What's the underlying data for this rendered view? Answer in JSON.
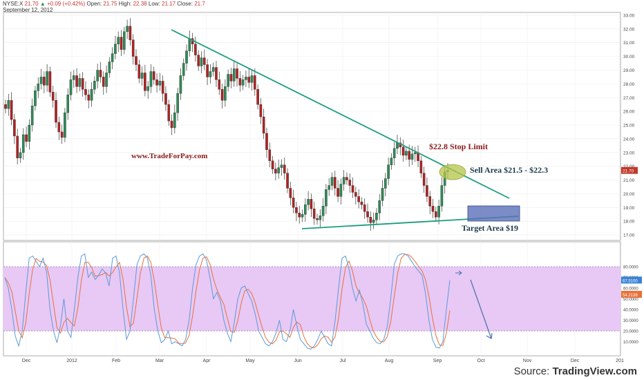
{
  "header": {
    "symbol": "NYSE:X",
    "last": "21.70",
    "change": "+0.09 (+0.42%)",
    "open_label": "Open:",
    "open": "21.75",
    "high_label": "High:",
    "high": "22.38",
    "low_label": "Low:",
    "low": "21.17",
    "close_label": "Close:",
    "close": "21.7",
    "date": "September 12, 2012"
  },
  "source": {
    "prefix": "Source:",
    "name": "TradingView.com"
  },
  "colors": {
    "up": "#2e8b57",
    "down": "#b22222",
    "trend": "#1a9e7a",
    "stoch_bg": "#e8c8f5",
    "k": "#5b9bd5",
    "d": "#e8703a",
    "annot": "#8b1a1a",
    "ellipse": "#b5c44a",
    "target_box": "#5a6fb8"
  },
  "chart_data": [
    {
      "type": "candlestick",
      "x_ticks": [
        "Dec",
        "2012",
        "Feb",
        "Mar",
        "Apr",
        "May",
        "Jun",
        "Jul",
        "Aug",
        "Sep",
        "Oct",
        "Nov",
        "Dec",
        "201"
      ],
      "y_ticks": [
        "17.00",
        "18.00",
        "19.00",
        "20.00",
        "21.00",
        "22.00",
        "23.00",
        "24.00",
        "25.00",
        "26.00",
        "27.00",
        "28.00",
        "29.00",
        "30.00",
        "31.00",
        "32.00",
        "33.00"
      ],
      "ylim": [
        16.6,
        33.2
      ],
      "last_price_tag": "21.70",
      "closes": [
        26.2,
        26.8,
        25.4,
        24.2,
        22.6,
        23.0,
        24.3,
        23.8,
        25.0,
        26.4,
        27.5,
        28.0,
        28.5,
        27.9,
        28.9,
        27.4,
        26.8,
        25.2,
        24.5,
        24.1,
        25.9,
        27.2,
        28.3,
        28.6,
        27.8,
        28.4,
        27.6,
        27.2,
        26.8,
        27.6,
        28.2,
        29.0,
        28.5,
        27.8,
        28.8,
        29.6,
        30.2,
        30.9,
        31.4,
        30.5,
        31.8,
        32.2,
        31.2,
        30.0,
        29.4,
        28.4,
        28.8,
        27.5,
        27.8,
        28.9,
        28.3,
        27.9,
        28.2,
        27.3,
        26.5,
        25.3,
        24.8,
        25.9,
        27.3,
        28.6,
        29.5,
        30.4,
        31.3,
        30.9,
        30.1,
        29.3,
        29.9,
        29.4,
        28.5,
        28.9,
        29.2,
        28.3,
        27.6,
        26.8,
        27.8,
        28.7,
        28.2,
        29.1,
        28.4,
        27.9,
        28.3,
        28.5,
        28.1,
        28.6,
        27.6,
        26.5,
        25.6,
        24.4,
        23.2,
        22.4,
        21.8,
        21.5,
        21.9,
        22.1,
        21.5,
        20.4,
        19.7,
        19.0,
        18.6,
        18.3,
        18.5,
        19.2,
        19.6,
        18.9,
        18.2,
        18.1,
        18.4,
        19.1,
        20.3,
        20.6,
        21.2,
        20.4,
        19.8,
        20.7,
        21.2,
        21.0,
        20.6,
        20.1,
        19.8,
        19.4,
        19.2,
        18.7,
        18.3,
        17.9,
        18.1,
        18.6,
        19.5,
        20.4,
        21.1,
        22.1,
        22.6,
        23.3,
        23.7,
        23.4,
        22.8,
        23.1,
        22.5,
        22.9,
        23.0,
        22.4,
        21.5,
        20.6,
        19.8,
        19.1,
        18.7,
        18.3,
        19.1,
        20.6,
        21.6,
        21.7
      ],
      "annotations": {
        "watermark": "www.TradeForPay.com",
        "stop": "$22.8 Stop Limit",
        "sell": "Sell Area $21.5 - $22.3",
        "target": "Target Area $19"
      }
    },
    {
      "type": "line",
      "name": "stochastic",
      "y_ticks": [
        "10.0000",
        "20.0000",
        "30.0000",
        "40.0000",
        "50.0000",
        "60.0000",
        "70.0000",
        "80.0000"
      ],
      "ylim": [
        0,
        100
      ],
      "band": [
        20,
        80
      ],
      "k_value_tag": "67.5100",
      "d_value_tag": "54.2138",
      "k": [
        70,
        60,
        40,
        15,
        6,
        20,
        55,
        88,
        90,
        85,
        80,
        88,
        75,
        40,
        20,
        9,
        25,
        50,
        20,
        14,
        40,
        70,
        90,
        92,
        70,
        75,
        68,
        72,
        78,
        74,
        62,
        88,
        90,
        74,
        40,
        12,
        20,
        50,
        82,
        90,
        92,
        88,
        72,
        40,
        20,
        9,
        12,
        20,
        8,
        10,
        8,
        6,
        12,
        30,
        60,
        82,
        90,
        92,
        86,
        70,
        50,
        56,
        48,
        30,
        18,
        10,
        28,
        50,
        60,
        62,
        55,
        48,
        36,
        20,
        14,
        8,
        6,
        10,
        18,
        30,
        12,
        10,
        20,
        40,
        25,
        12,
        8,
        4,
        3,
        6,
        12,
        20,
        14,
        8,
        6,
        30,
        60,
        88,
        90,
        78,
        60,
        48,
        58,
        45,
        26,
        20,
        13,
        9,
        8,
        12,
        24,
        50,
        82,
        90,
        92,
        92,
        90,
        85,
        80,
        76,
        72,
        55,
        30,
        12,
        5,
        4,
        10,
        40,
        67.5
      ]
    }
  ]
}
